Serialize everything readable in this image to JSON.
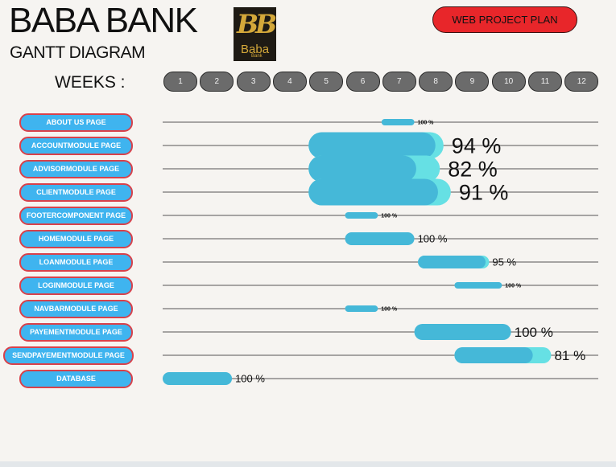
{
  "header": {
    "title": "BABA BANK",
    "subtitle": "GANTT DIAGRAM",
    "logo": {
      "monogram": "BB",
      "name": "Baba",
      "sub": "Bank"
    },
    "plan_button": "WEB PROJECT PLAN",
    "weeks_label": "WEEKS :"
  },
  "colors": {
    "bar": "#45b8d8",
    "bar_remaining": "#66e0e4",
    "label_bg": "#3fb4ef",
    "label_border": "#d9414a",
    "plan_button": "#e8262a",
    "week_pill": "#6b6b6b"
  },
  "chart_data": {
    "type": "gantt",
    "title": "GANTT DIAGRAM",
    "x_axis": {
      "label": "WEEKS :",
      "ticks": [
        "1",
        "2",
        "3",
        "4",
        "5",
        "6",
        "7",
        "8",
        "9",
        "10",
        "11",
        "12"
      ]
    },
    "tasks": [
      {
        "name": "ABOUT US PAGE",
        "start": 7.0,
        "end": 7.9,
        "progress": 100,
        "label": "100 %",
        "thickness": "thin"
      },
      {
        "name": "ACCOUNTMODULE PAGE",
        "start": 5.0,
        "end": 8.7,
        "progress": 94,
        "label": "94 %",
        "thickness": "xl"
      },
      {
        "name": "ADVISORMODULE PAGE",
        "start": 5.0,
        "end": 8.6,
        "progress": 82,
        "label": "82 %",
        "thickness": "xl"
      },
      {
        "name": "CLIENTMODULE PAGE",
        "start": 5.0,
        "end": 8.9,
        "progress": 91,
        "label": "91 %",
        "thickness": "xl"
      },
      {
        "name": "FOOTERCOMPONENT PAGE",
        "start": 6.0,
        "end": 6.9,
        "progress": 100,
        "label": "100 %",
        "thickness": "thin"
      },
      {
        "name": "HOMEMODULE PAGE",
        "start": 6.0,
        "end": 7.9,
        "progress": 100,
        "label": "100 %",
        "thickness": "medium"
      },
      {
        "name": "LOANMODULE PAGE",
        "start": 8.0,
        "end": 9.95,
        "progress": 95,
        "label": "95 %",
        "thickness": "medium"
      },
      {
        "name": "LOGINMODULE PAGE",
        "start": 9.0,
        "end": 10.3,
        "progress": 100,
        "label": "100 %",
        "thickness": "thin"
      },
      {
        "name": "NAVBARMODULE PAGE",
        "start": 6.0,
        "end": 6.9,
        "progress": 100,
        "label": "100 %",
        "thickness": "thin"
      },
      {
        "name": "PAYEMENTMODULE PAGE",
        "start": 7.9,
        "end": 10.55,
        "progress": 100,
        "label": "100 %",
        "thickness": "large"
      },
      {
        "name": "SENDPAYEMENTMODULE PAGE",
        "start": 9.0,
        "end": 11.65,
        "progress": 81,
        "label": "81 %",
        "thickness": "large"
      },
      {
        "name": "DATABASE",
        "start": 1.0,
        "end": 2.9,
        "progress": 100,
        "label": "100 %",
        "thickness": "medium"
      }
    ]
  }
}
